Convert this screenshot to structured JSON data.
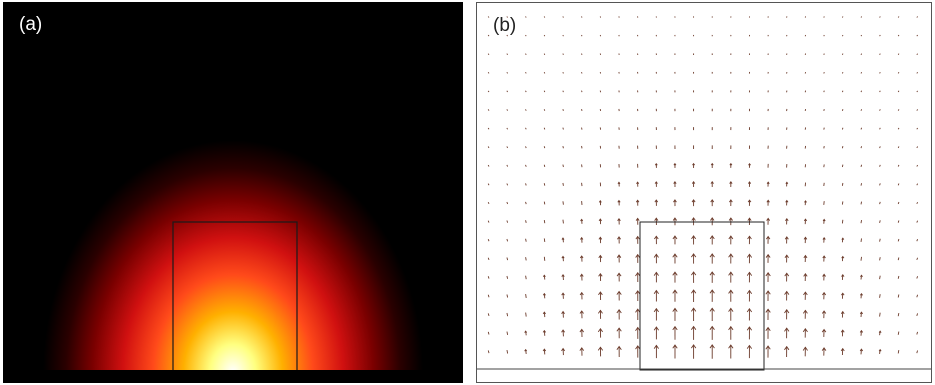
{
  "panels": {
    "a": {
      "label": "(a)",
      "kind": "field intensity colormap",
      "colors": {
        "background": "#000000",
        "colormap": [
          "#000000",
          "#3a0000",
          "#a00000",
          "#e02010",
          "#ff5020",
          "#ffb000",
          "#ffff60",
          "#ffffff"
        ]
      }
    },
    "b": {
      "label": "(b)",
      "kind": "vector (arrow) field",
      "colors": {
        "background": "#ffffff",
        "arrow": "#6b3a2a",
        "outline": "#222222"
      }
    }
  }
}
